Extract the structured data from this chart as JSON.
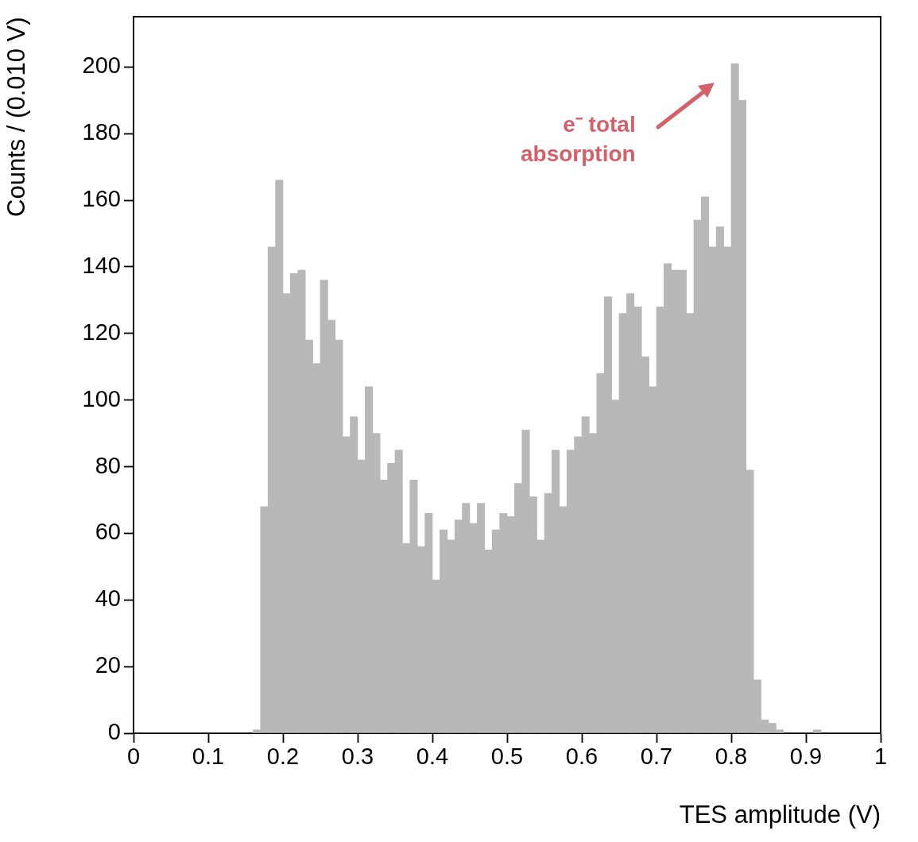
{
  "chart_data": {
    "type": "histogram",
    "xlabel": "TES amplitude (V)",
    "ylabel": "Counts / (0.010 V)",
    "bins": [
      0,
      0.01,
      0.02,
      0.03,
      0.04,
      0.05,
      0.06,
      0.07,
      0.08,
      0.09,
      0.1,
      0.11,
      0.12,
      0.13,
      0.14,
      0.15,
      0.16,
      0.17,
      0.18,
      0.19,
      0.2,
      0.21,
      0.22,
      0.23,
      0.24,
      0.25,
      0.26,
      0.27,
      0.28,
      0.29,
      0.3,
      0.31,
      0.32,
      0.33,
      0.34,
      0.35,
      0.36,
      0.37,
      0.38,
      0.39,
      0.4,
      0.41,
      0.42,
      0.43,
      0.44,
      0.45,
      0.46,
      0.47,
      0.48,
      0.49,
      0.5,
      0.51,
      0.52,
      0.53,
      0.54,
      0.55,
      0.56,
      0.57,
      0.58,
      0.59,
      0.6,
      0.61,
      0.62,
      0.63,
      0.64,
      0.65,
      0.66,
      0.67,
      0.68,
      0.69,
      0.7,
      0.71,
      0.72,
      0.73,
      0.74,
      0.75,
      0.76,
      0.77,
      0.78,
      0.79,
      0.8,
      0.81,
      0.82,
      0.83,
      0.84,
      0.85,
      0.86,
      0.87,
      0.88,
      0.89,
      0.9,
      0.91,
      0.92,
      0.93,
      0.94,
      0.95,
      0.96,
      0.97,
      0.98,
      0.99,
      1
    ],
    "values": [
      0,
      0,
      0,
      0,
      0,
      0,
      0,
      0,
      0,
      0,
      0,
      0,
      0,
      0,
      0,
      0,
      1,
      68,
      146,
      166,
      132,
      138,
      139,
      118,
      111,
      136,
      124,
      118,
      89,
      95,
      82,
      104,
      90,
      76,
      81,
      85,
      57,
      76,
      56,
      66,
      46,
      61,
      58,
      64,
      69,
      63,
      69,
      55,
      61,
      66,
      65,
      75,
      91,
      71,
      58,
      72,
      85,
      68,
      85,
      89,
      95,
      90,
      108,
      131,
      100,
      126,
      132,
      128,
      113,
      104,
      128,
      141,
      139,
      139,
      126,
      154,
      161,
      146,
      152,
      146,
      201,
      190,
      79,
      16,
      4,
      3,
      1,
      0,
      0,
      0,
      0,
      1,
      0,
      0,
      0,
      0,
      0,
      0,
      0,
      0
    ],
    "color": "#b8b8b8",
    "xlim": [
      0,
      1
    ],
    "xticks": [
      0,
      0.1,
      0.2,
      0.3,
      0.4,
      0.5,
      0.6,
      0.7,
      0.8,
      0.9,
      1
    ],
    "ylim": [
      0,
      215
    ],
    "yticks": [
      0,
      20,
      40,
      60,
      80,
      100,
      120,
      140,
      160,
      180,
      200
    ],
    "grid": false,
    "legend": false,
    "annotations": [
      "e⁻ total absorption"
    ]
  }
}
